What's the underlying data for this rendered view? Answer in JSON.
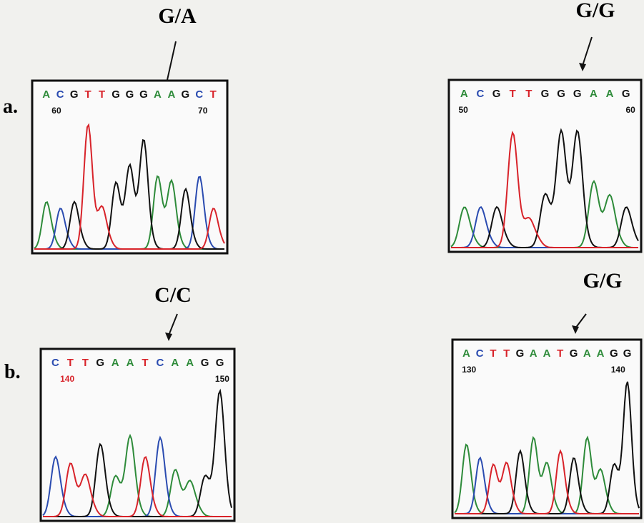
{
  "row_labels": [
    "a.",
    "b."
  ],
  "panels": [
    {
      "genotype": "G/A",
      "sequence": [
        "A",
        "C",
        "G",
        "T",
        "T",
        "G",
        "G",
        "G",
        "A",
        "A",
        "G",
        "C",
        "T"
      ],
      "positions": [
        60,
        70
      ]
    },
    {
      "genotype": "G/G",
      "sequence": [
        "A",
        "C",
        "G",
        "T",
        "T",
        "G",
        "G",
        "G",
        "A",
        "A",
        "G"
      ],
      "positions": [
        50,
        60
      ]
    },
    {
      "genotype": "C/C",
      "sequence": [
        "C",
        "T",
        "T",
        "G",
        "A",
        "A",
        "T",
        "C",
        "A",
        "A",
        "G",
        "G"
      ],
      "positions": [
        140,
        150
      ]
    },
    {
      "genotype": "G/G",
      "sequence": [
        "A",
        "C",
        "T",
        "T",
        "G",
        "A",
        "A",
        "T",
        "G",
        "A",
        "A",
        "G",
        "G"
      ],
      "positions": [
        130,
        140
      ]
    }
  ]
}
